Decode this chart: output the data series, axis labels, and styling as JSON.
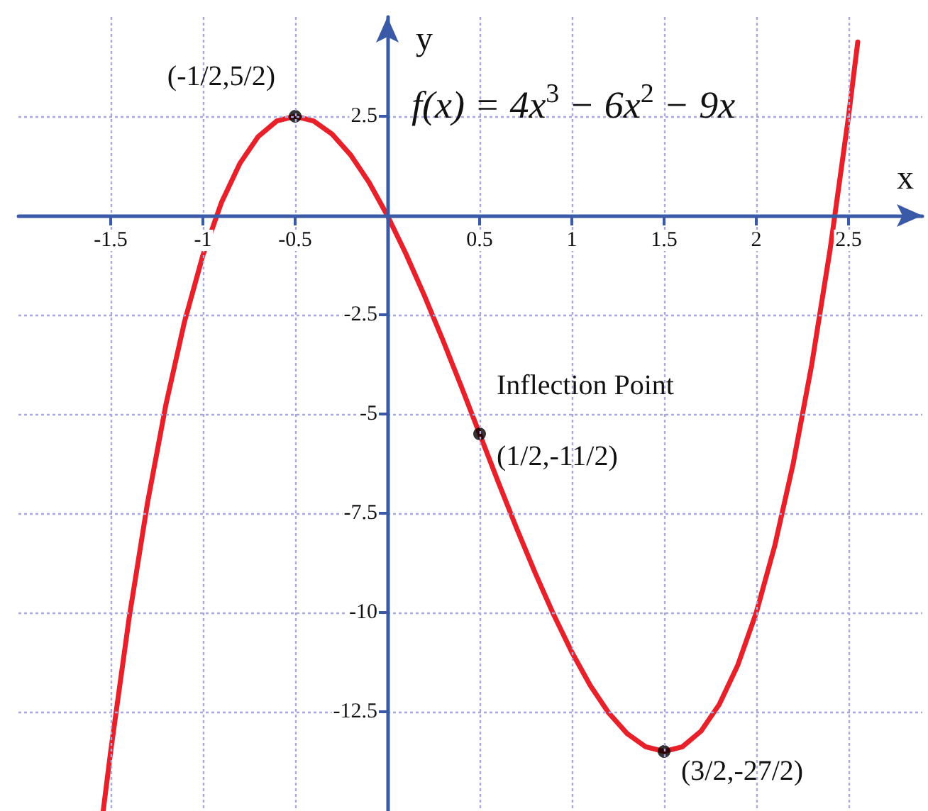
{
  "chart_data": {
    "type": "line",
    "xlabel": "x",
    "ylabel": "y",
    "xlim": [
      -2,
      2.9
    ],
    "ylim": [
      -15,
      5
    ],
    "xticks": [
      -1.5,
      -1,
      -0.5,
      0.5,
      1,
      1.5,
      2,
      2.5
    ],
    "yticks": [
      2.5,
      -2.5,
      -5,
      -7.5,
      -10,
      -12.5
    ],
    "grid": true,
    "line_style": "solid",
    "marker": "none",
    "series": [
      {
        "color": "#e8202a",
        "x": [
          -1.54,
          -1.5,
          -1.4,
          -1.3,
          -1.2,
          -1.1,
          -1.0,
          -0.9,
          -0.8,
          -0.7,
          -0.6,
          -0.5,
          -0.4,
          -0.3,
          -0.2,
          -0.1,
          0,
          0.1,
          0.2,
          0.3,
          0.4,
          0.5,
          0.6,
          0.7,
          0.8,
          0.9,
          1.0,
          1.1,
          1.2,
          1.3,
          1.4,
          1.5,
          1.6,
          1.7,
          1.8,
          1.9,
          2.0,
          2.1,
          2.2,
          2.3,
          2.4,
          2.5,
          2.55
        ],
        "values": [
          -14.98,
          -13.5,
          -10.14,
          -7.23,
          -4.75,
          -2.68,
          -1,
          0.32,
          1.31,
          1.99,
          2.38,
          2.5,
          2.38,
          2.05,
          1.53,
          0.84,
          0,
          -0.96,
          -2.01,
          -3.13,
          -4.3,
          -5.5,
          -6.7,
          -7.87,
          -8.99,
          -10.04,
          -11,
          -11.84,
          -12.53,
          -13.05,
          -13.38,
          -13.5,
          -13.38,
          -12.99,
          -12.31,
          -11.32,
          -10,
          -8.32,
          -6.25,
          -3.77,
          -0.86,
          2.5,
          4.37
        ]
      },
      {
        "type": "scatter",
        "color": "#000000",
        "marker": "circle",
        "x": [
          -0.5,
          0.5,
          1.5
        ],
        "values": [
          2.5,
          -5.5,
          -13.5
        ]
      }
    ],
    "annotations": [
      "f(x) = 4x$^{3}$ − 6x$^{2}$ − 9x",
      {
        "text": "(-1/2,5/2)",
        "x": -0.5,
        "y": 2.5
      },
      {
        "text": "Inflection Point",
        "x": 0.5,
        "y": -5.5
      },
      {
        "text": "(1/2,-11/2)",
        "x": 0.5,
        "y": -5.5
      },
      {
        "text": "(3/2,-27/2)",
        "x": 1.5,
        "y": -13.5
      }
    ]
  }
}
